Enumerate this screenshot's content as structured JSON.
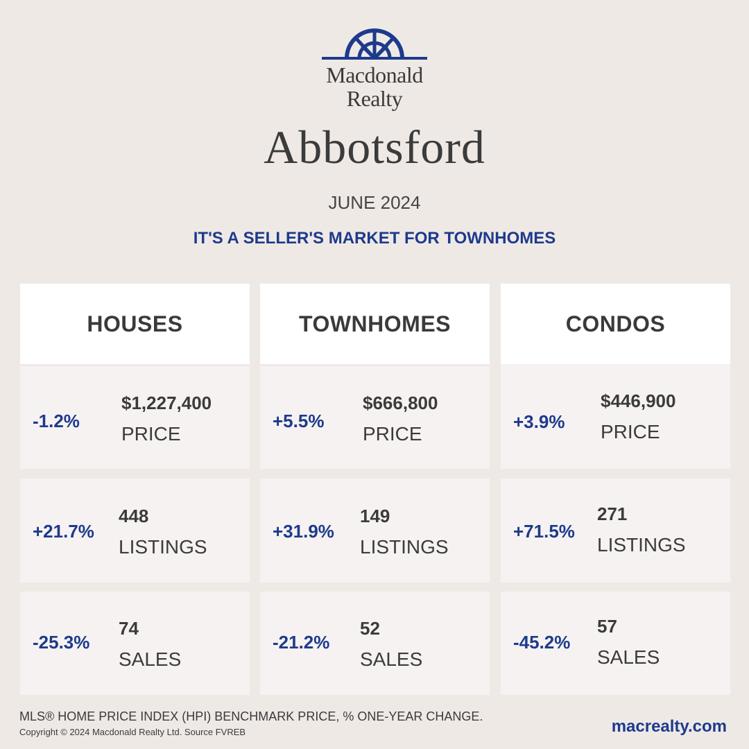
{
  "brand": {
    "line1": "Macdonald",
    "line2": "Realty",
    "accent_color": "#1d3a8c"
  },
  "city": "Abbotsford",
  "month": "JUNE 2024",
  "headline": "IT'S A SELLER'S MARKET FOR TOWNHOMES",
  "columns": [
    {
      "title": "HOUSES",
      "price": {
        "pct": "-1.2%",
        "value": "$1,227,400",
        "label": "PRICE"
      },
      "listings": {
        "pct": "+21.7%",
        "value": "448",
        "label": "LISTINGS"
      },
      "sales": {
        "pct": "-25.3%",
        "value": "74",
        "label": "SALES"
      }
    },
    {
      "title": "TOWNHOMES",
      "price": {
        "pct": "+5.5%",
        "value": "$666,800",
        "label": "PRICE"
      },
      "listings": {
        "pct": "+31.9%",
        "value": "149",
        "label": "LISTINGS"
      },
      "sales": {
        "pct": "-21.2%",
        "value": "52",
        "label": "SALES"
      }
    },
    {
      "title": "CONDOS",
      "price": {
        "pct": "+3.9%",
        "value": "$446,900",
        "label": "PRICE"
      },
      "listings": {
        "pct": "+71.5%",
        "value": "271",
        "label": "LISTINGS"
      },
      "sales": {
        "pct": "-45.2%",
        "value": "57",
        "label": "SALES"
      }
    }
  ],
  "footer": {
    "note": "MLS® HOME PRICE INDEX (HPI) BENCHMARK PRICE, % ONE-YEAR CHANGE.",
    "copyright": "Copyright © 2024 Macdonald Realty Ltd. Source FVREB",
    "website": "macrealty.com"
  }
}
